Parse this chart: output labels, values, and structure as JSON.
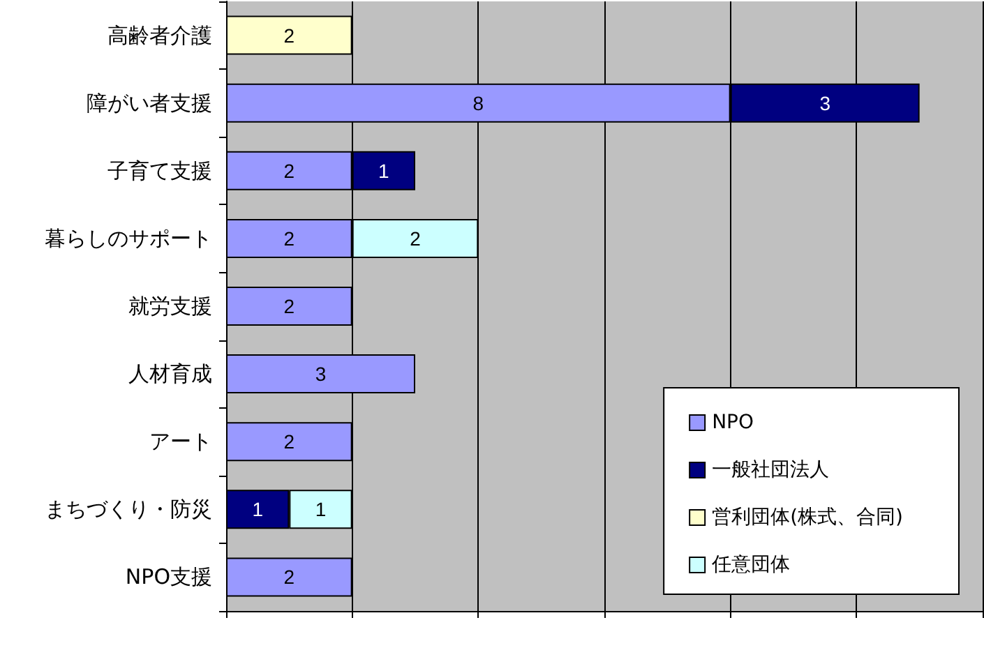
{
  "chart_data": {
    "type": "bar",
    "orientation": "horizontal",
    "stacked": true,
    "categories": [
      "高齢者介護",
      "障がい者支援",
      "子育て支援",
      "暮らしのサポート",
      "就労支援",
      "人材育成",
      "アート",
      "まちづくり・防災",
      "NPO支援"
    ],
    "series": [
      {
        "name": "NPO",
        "color": "#9999ff",
        "values": [
          null,
          8,
          2,
          2,
          2,
          3,
          2,
          null,
          2
        ]
      },
      {
        "name": "一般社団法人",
        "color": "#000080",
        "values": [
          null,
          3,
          1,
          null,
          null,
          null,
          null,
          1,
          null
        ]
      },
      {
        "name": "営利団体(株式、合同)",
        "color": "#ffffcc",
        "values": [
          2,
          null,
          null,
          null,
          null,
          null,
          null,
          null,
          null
        ]
      },
      {
        "name": "任意団体",
        "color": "#ccffff",
        "values": [
          null,
          null,
          null,
          2,
          null,
          null,
          null,
          1,
          null
        ]
      }
    ],
    "xlim": [
      0,
      12
    ],
    "xticks": [
      {
        "value": 0,
        "label": null
      },
      {
        "value": 2,
        "label": null
      },
      {
        "value": 4,
        "label": null
      },
      {
        "value": 6,
        "label": null
      },
      {
        "value": 8,
        "label": null
      },
      {
        "value": 10,
        "label": null
      },
      {
        "value": 12,
        "label": null
      }
    ],
    "tick_labels": "y",
    "grid": "x",
    "legend": "bottom right",
    "data_labels": true
  }
}
